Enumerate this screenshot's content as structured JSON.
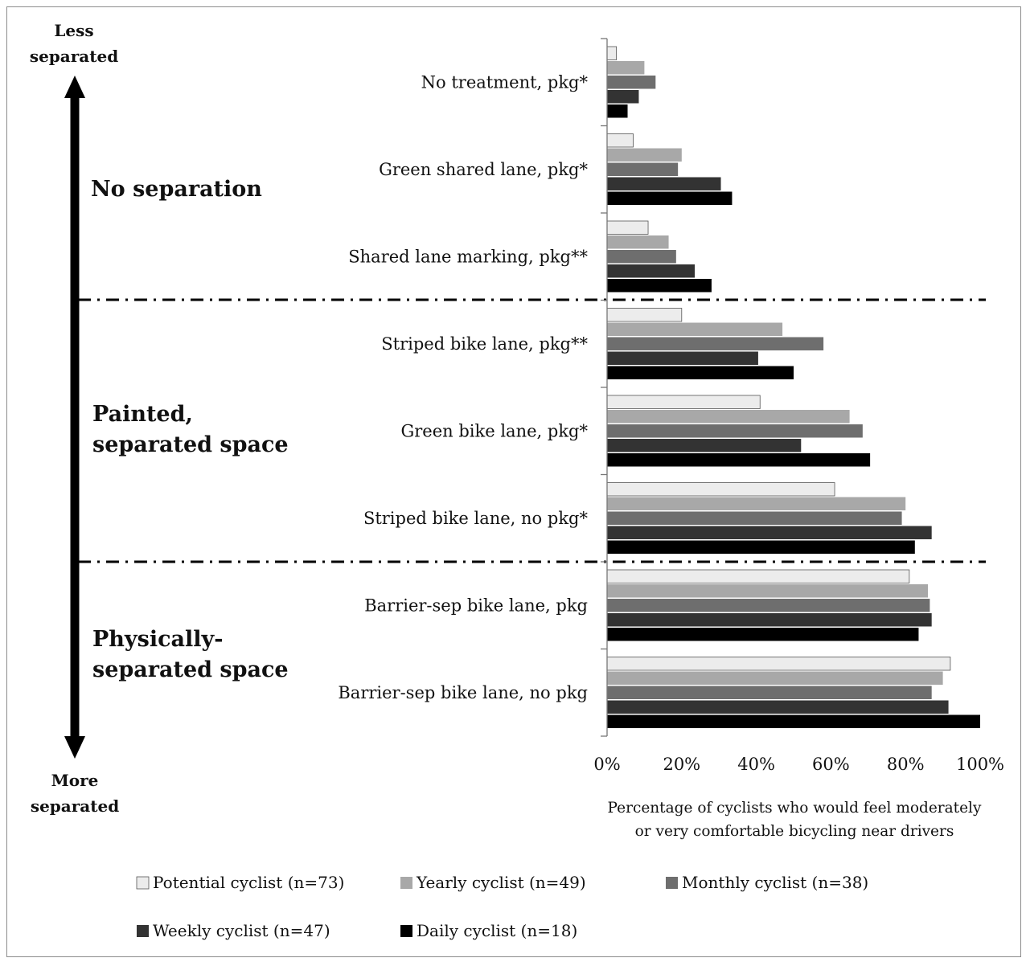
{
  "chart_data": {
    "type": "bar",
    "orientation": "horizontal",
    "categories": [
      "No treatment, pkg*",
      "Green shared lane, pkg*",
      "Shared lane marking, pkg**",
      "Striped bike lane, pkg**",
      "Green bike lane, pkg*",
      "Striped bike lane, no pkg*",
      "Barrier-sep bike lane, pkg",
      "Barrier-sep bike lane, no pkg"
    ],
    "series": [
      {
        "name": "Potential cyclist (n=73)",
        "color": "#ececec",
        "values": [
          2.5,
          7,
          11,
          20,
          41,
          61,
          81,
          92
        ]
      },
      {
        "name": "Yearly cyclist (n=49)",
        "color": "#a8a8a8",
        "values": [
          10,
          20,
          16.5,
          47,
          65,
          80,
          86,
          90
        ]
      },
      {
        "name": "Monthly cyclist (n=38)",
        "color": "#6e6e6e",
        "values": [
          13,
          19,
          18.5,
          58,
          68.5,
          79,
          86.5,
          87
        ]
      },
      {
        "name": "Weekly cyclist (n=47)",
        "color": "#333333",
        "values": [
          8.5,
          30.5,
          23.5,
          40.5,
          52,
          87,
          87,
          91.5
        ]
      },
      {
        "name": "Daily cyclist (n=18)",
        "color": "#000000",
        "values": [
          5.5,
          33.5,
          28,
          50,
          70.5,
          82.5,
          83.5,
          100
        ]
      }
    ],
    "xlim": [
      0,
      100
    ],
    "xticks": [
      "0%",
      "20%",
      "40%",
      "60%",
      "80%",
      "100%"
    ],
    "xlabel_lines": [
      "Percentage of cyclists who would feel moderately",
      "or very comfortable bicycling near drivers"
    ],
    "ylabel": "",
    "title": "",
    "legend_position": "bottom",
    "groups": [
      {
        "lines": [
          "No separation"
        ]
      },
      {
        "lines": [
          "Painted,",
          "separated space"
        ]
      },
      {
        "lines": [
          "Physically-",
          "separated space"
        ]
      }
    ],
    "arrow_top": [
      "Less",
      "separated"
    ],
    "arrow_bottom": [
      "More",
      "separated"
    ],
    "grid": false
  }
}
